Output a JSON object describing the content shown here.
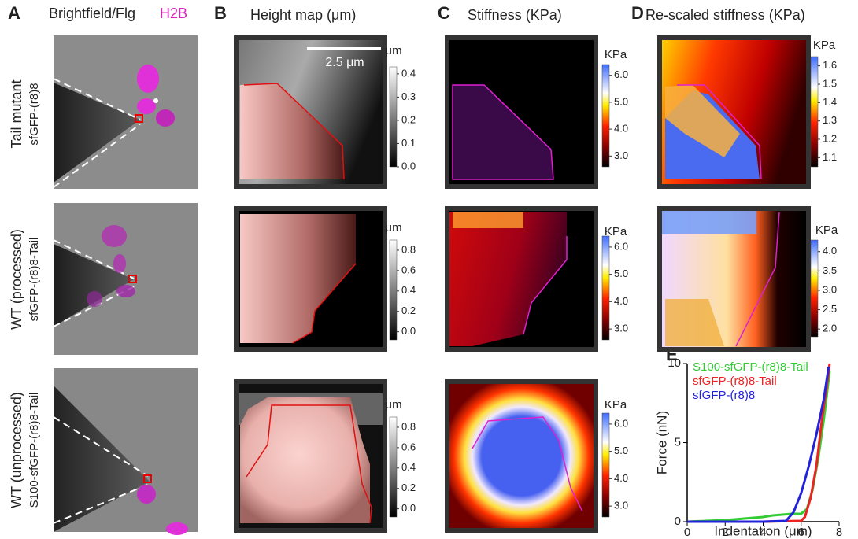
{
  "panels": {
    "A": {
      "letter": "A",
      "title": "Brightfield/Flg",
      "title_accent": "H2B"
    },
    "B": {
      "letter": "B",
      "title": "Height map (μm)",
      "scale_bar": "2.5 μm"
    },
    "C": {
      "letter": "C",
      "title": "Stiffness (KPa)"
    },
    "D": {
      "letter": "D",
      "title": "Re-scaled stiffness (KPa)"
    },
    "E": {
      "letter": "E"
    }
  },
  "rows": [
    {
      "label": "Tail mutant",
      "construct": "sfGFP-(r8)8"
    },
    {
      "label": "WT (processed)",
      "construct": "sfGFP-(r8)8-Tail"
    },
    {
      "label": "WT (unprocessed)",
      "construct": "S100-sfGFP-(r8)8-Tail"
    }
  ],
  "colorbars": [
    {
      "label": "μm",
      "lim": [
        0,
        0.43
      ],
      "ticks": [
        {
          "value": 0,
          "label": "0.0"
        },
        {
          "value": 0.1,
          "label": "0.1"
        },
        {
          "value": 0.2,
          "label": "0.2"
        },
        {
          "value": 0.3,
          "label": "0.3"
        },
        {
          "value": 0.4,
          "label": "0.4"
        }
      ]
    },
    {
      "label": "μm",
      "lim": [
        -0.08,
        0.9
      ],
      "ticks": [
        {
          "value": 0,
          "label": "0.0"
        },
        {
          "value": 0.2,
          "label": "0.2"
        },
        {
          "value": 0.4,
          "label": "0.4"
        },
        {
          "value": 0.6,
          "label": "0.6"
        },
        {
          "value": 0.8,
          "label": "0.8"
        }
      ]
    },
    {
      "label": "μm",
      "lim": [
        -0.08,
        0.9
      ],
      "ticks": [
        {
          "value": 0,
          "label": "0.0"
        },
        {
          "value": 0.2,
          "label": "0.2"
        },
        {
          "value": 0.4,
          "label": "0.4"
        },
        {
          "value": 0.6,
          "label": "0.6"
        },
        {
          "value": 0.8,
          "label": "0.8"
        }
      ]
    },
    {
      "label": "KPa",
      "lim": [
        2.6,
        6.4
      ],
      "ticks": [
        {
          "value": 3,
          "label": "3.0"
        },
        {
          "value": 4,
          "label": "4.0"
        },
        {
          "value": 5,
          "label": "5.0"
        },
        {
          "value": 6,
          "label": "6.0"
        }
      ]
    },
    {
      "label": "KPa",
      "lim": [
        2.6,
        6.4
      ],
      "ticks": [
        {
          "value": 3,
          "label": "3.0"
        },
        {
          "value": 4,
          "label": "4.0"
        },
        {
          "value": 5,
          "label": "5.0"
        },
        {
          "value": 6,
          "label": "6.0"
        }
      ]
    },
    {
      "label": "KPa",
      "lim": [
        2.6,
        6.4
      ],
      "ticks": [
        {
          "value": 3,
          "label": "3.0"
        },
        {
          "value": 4,
          "label": "4.0"
        },
        {
          "value": 5,
          "label": "5.0"
        },
        {
          "value": 6,
          "label": "6.0"
        }
      ]
    },
    {
      "label": "KPa",
      "lim": [
        1.05,
        1.65
      ],
      "ticks": [
        1.1,
        1.2,
        1.3,
        1.4,
        1.5,
        1.6
      ]
    },
    {
      "label": "KPa",
      "lim": [
        1.8,
        4.3
      ],
      "ticks": [
        {
          "value": 2,
          "label": "2.0"
        },
        2.5,
        {
          "value": 3,
          "label": "3.0"
        },
        3.5,
        {
          "value": 4,
          "label": "4.0"
        }
      ]
    }
  ],
  "chart_data": {
    "type": "line",
    "xlabel": "Indentation (μm)",
    "ylabel": "Force (nN)",
    "xlim": [
      0,
      8
    ],
    "ylim": [
      0,
      10
    ],
    "xticks": [
      0,
      2,
      4,
      6,
      8
    ],
    "yticks": [
      0,
      5,
      10
    ],
    "series": [
      {
        "name": "S100-sfGFP-(r8)8-Tail",
        "color": "#33cc33",
        "x": [
          0,
          1,
          2,
          3,
          4,
          4.5,
          5,
          5.5,
          6,
          6.3,
          6.6,
          6.9,
          7.2,
          7.5
        ],
        "values": [
          0,
          0.05,
          0.1,
          0.2,
          0.3,
          0.4,
          0.45,
          0.5,
          0.5,
          0.8,
          2,
          4,
          6.5,
          9.5
        ]
      },
      {
        "name": "sfGFP-(r8)8-Tail",
        "color": "#ee2222",
        "x": [
          0,
          2,
          4,
          6,
          6.2,
          6.5,
          6.8,
          7.1,
          7.4,
          7.5
        ],
        "values": [
          0,
          0,
          0,
          0.05,
          0.3,
          1.5,
          3.5,
          6.5,
          9,
          10
        ]
      },
      {
        "name": "sfGFP-(r8)8",
        "color": "#2222dd",
        "x": [
          0,
          2,
          4,
          5.2,
          5.6,
          6,
          6.4,
          6.8,
          7.2,
          7.45
        ],
        "values": [
          0,
          0,
          0,
          0.05,
          0.6,
          1.8,
          3.5,
          5.5,
          7.8,
          9.8
        ]
      }
    ]
  }
}
